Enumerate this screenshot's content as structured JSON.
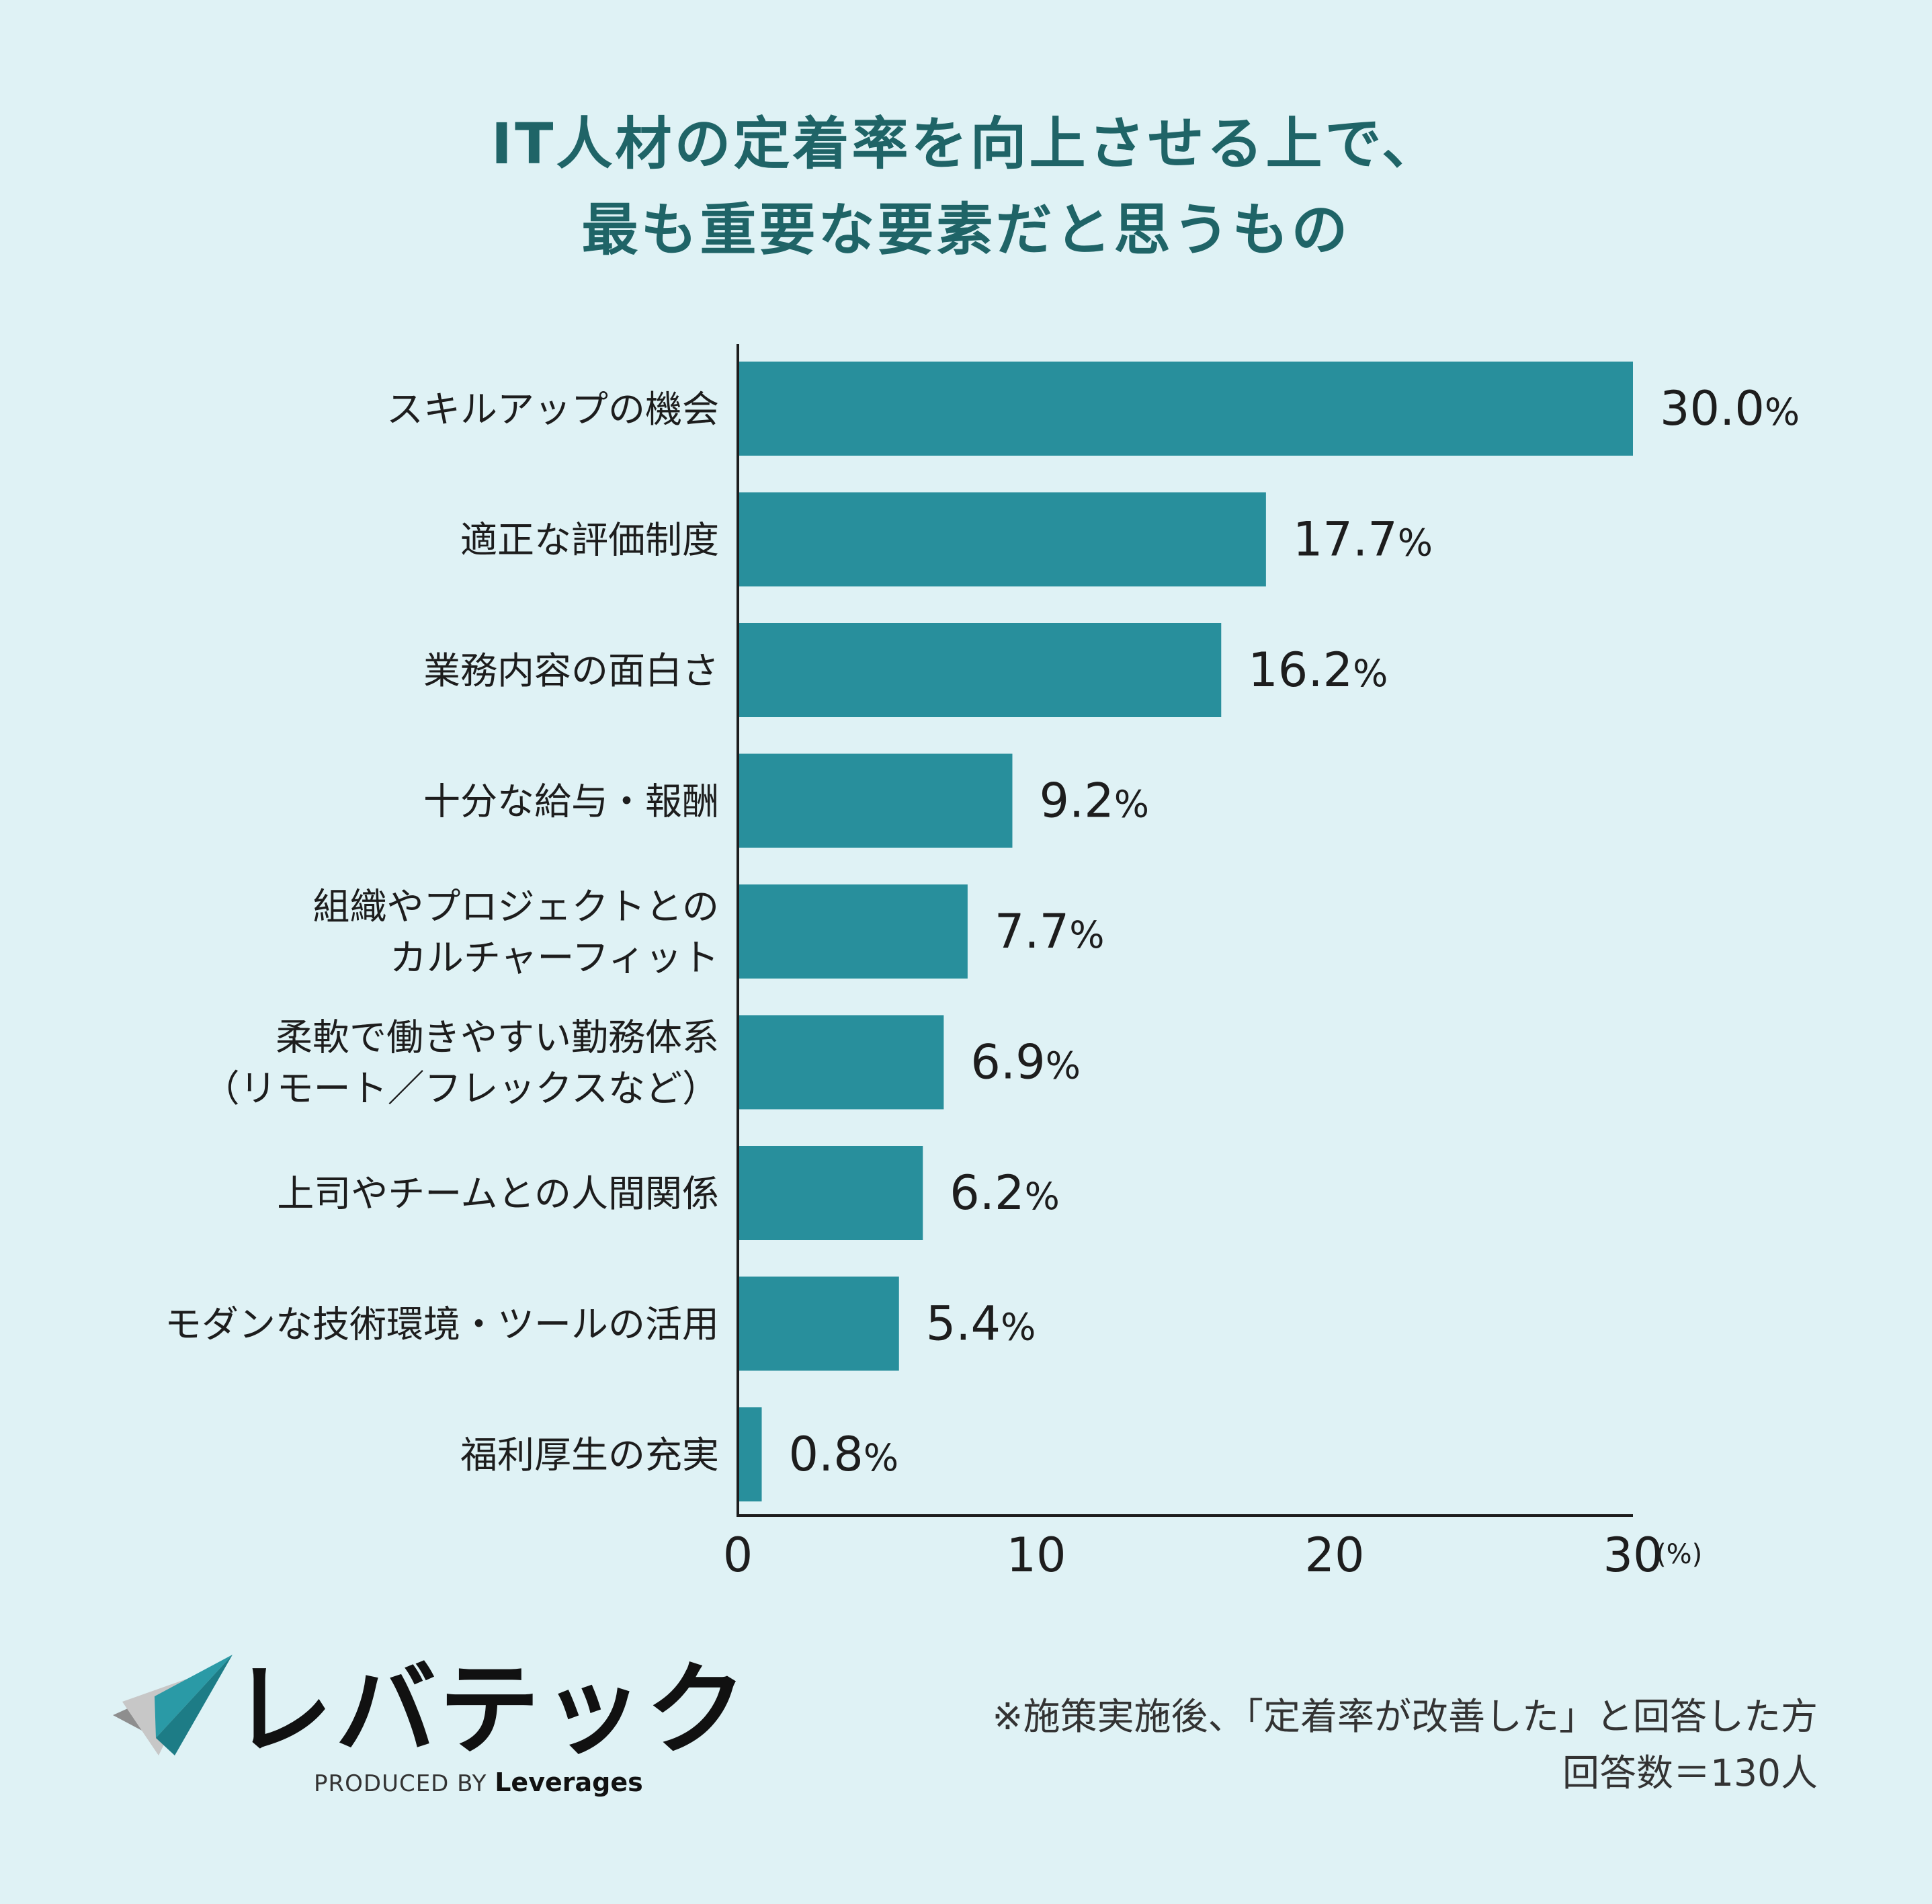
{
  "title": {
    "line1": "IT人材の定着率を向上させる上で、",
    "line2": "最も重要な要素だと思うもの"
  },
  "chart_data": {
    "type": "bar",
    "orientation": "horizontal",
    "title": "IT人材の定着率を向上させる上で、最も重要な要素だと思うもの",
    "unit": "(%)",
    "categories": [
      [
        "スキルアップの機会"
      ],
      [
        "適正な評価制度"
      ],
      [
        "業務内容の面白さ"
      ],
      [
        "十分な給与・報酬"
      ],
      [
        "組織やプロジェクトとの",
        "カルチャーフィット"
      ],
      [
        "柔軟で働きやすい勤務体系",
        "（リモート／フレックスなど）"
      ],
      [
        "上司やチームとの人間関係"
      ],
      [
        "モダンな技術環境・ツールの活用"
      ],
      [
        "福利厚生の充実"
      ]
    ],
    "values": [
      30.0,
      17.7,
      16.2,
      9.2,
      7.7,
      6.9,
      6.2,
      5.4,
      0.8
    ],
    "value_labels": [
      "30.0",
      "17.7",
      "16.2",
      "9.2",
      "7.7",
      "6.9",
      "6.2",
      "5.4",
      "0.8"
    ],
    "percent_sign": "%",
    "xlim": [
      0,
      30
    ],
    "xticks": [
      "0",
      "10",
      "20",
      "30"
    ],
    "grid": false,
    "bar_color": "#288f9c"
  },
  "logo": {
    "name": "レバテック",
    "produced_by": "PRODUCED BY",
    "brand": "Leverages"
  },
  "notes": {
    "line1": "※施策実施後、「定着率が改善した」と回答した方",
    "line2": "回答数＝130人"
  },
  "colors": {
    "background": "#dff2f5",
    "title": "#1f6467",
    "bar": "#288f9c"
  }
}
